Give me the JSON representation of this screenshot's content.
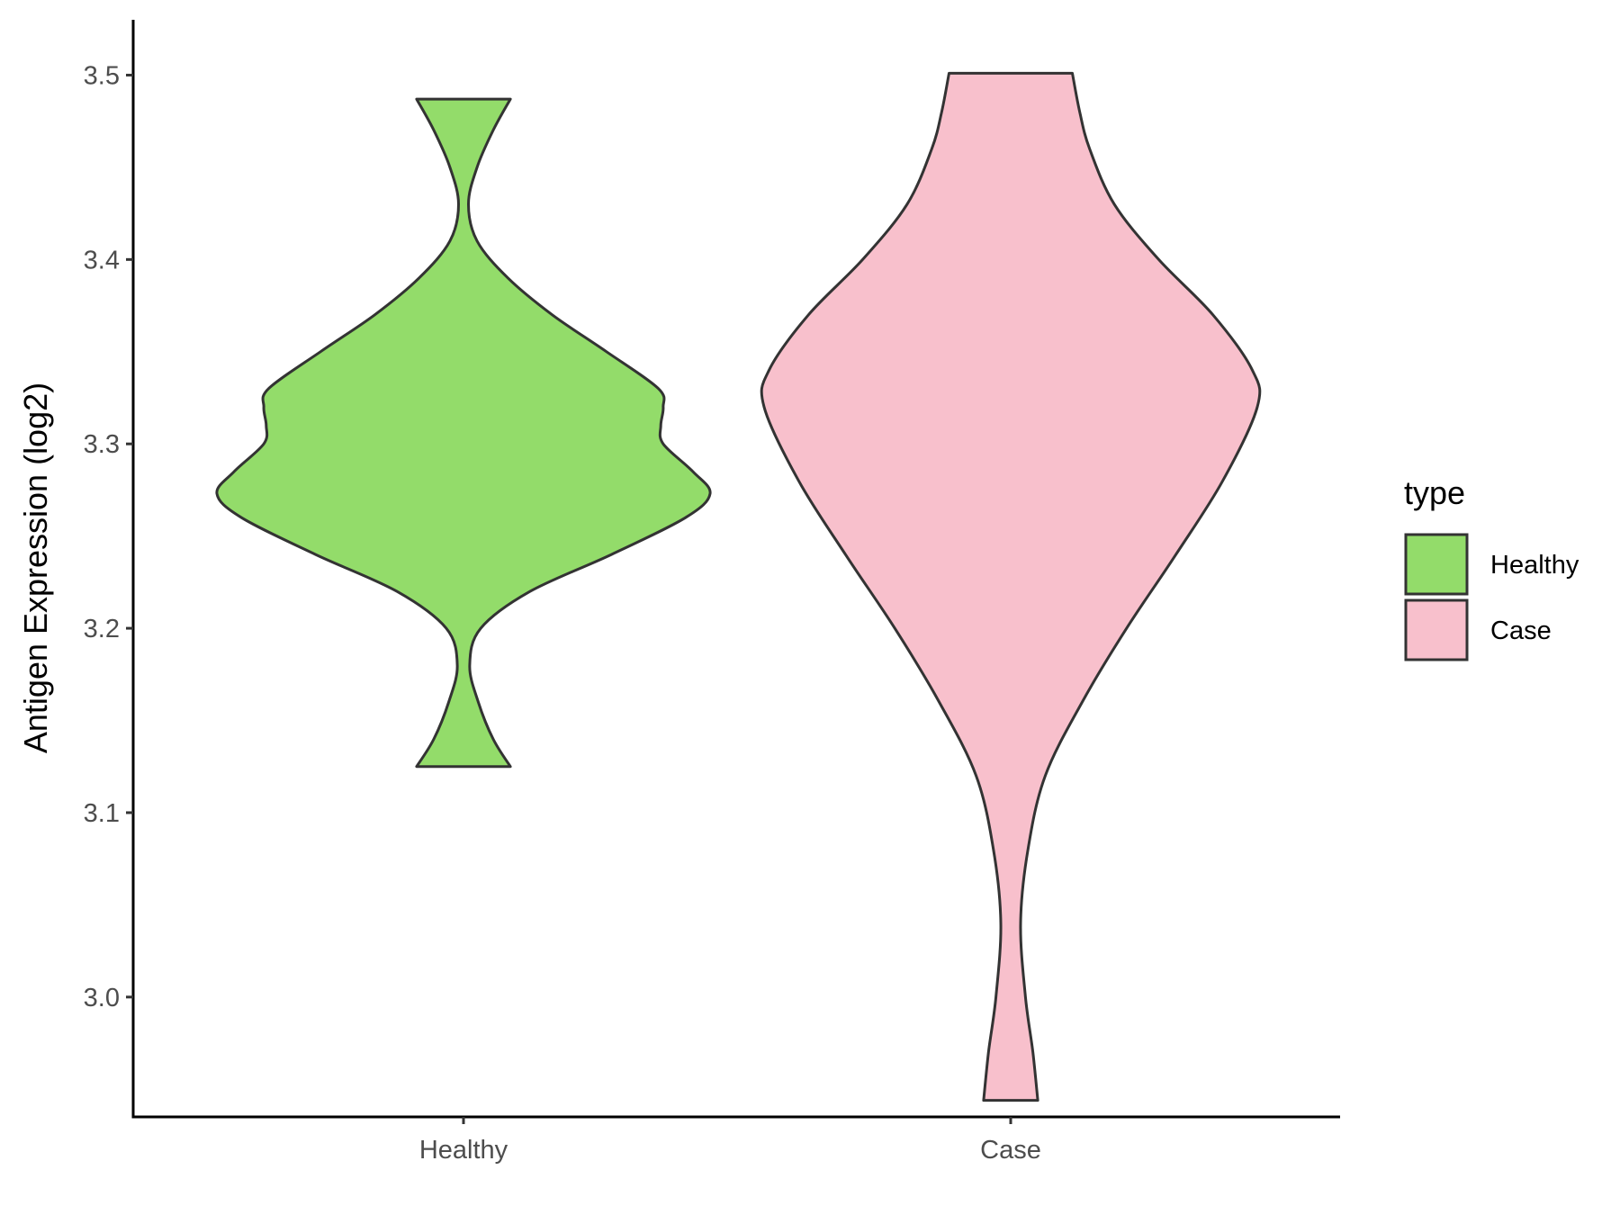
{
  "chart_data": {
    "type": "violin",
    "ylabel": "Antigen Expression (log2)",
    "xlabel": "",
    "categories": [
      "Healthy",
      "Case"
    ],
    "ylim": [
      2.935,
      3.53
    ],
    "yticks": [
      3.0,
      3.1,
      3.2,
      3.3,
      3.4,
      3.5
    ],
    "ytick_labels": [
      "3.0",
      "3.1",
      "3.2",
      "3.3",
      "3.4",
      "3.5"
    ],
    "grid": false,
    "legend": {
      "title": "type",
      "position": "right",
      "entries": [
        {
          "label": "Healthy",
          "color": "#93DC6A"
        },
        {
          "label": "Case",
          "color": "#F8C0CC"
        }
      ]
    },
    "series": [
      {
        "category": "Healthy",
        "color": "#93DC6A",
        "range": [
          3.125,
          3.487
        ],
        "density_relative_halfwidth": [
          [
            3.125,
            0.19
          ],
          [
            3.14,
            0.12
          ],
          [
            3.16,
            0.06
          ],
          [
            3.18,
            0.025
          ],
          [
            3.2,
            0.07
          ],
          [
            3.22,
            0.27
          ],
          [
            3.24,
            0.6
          ],
          [
            3.26,
            0.9
          ],
          [
            3.273,
            1.0
          ],
          [
            3.285,
            0.93
          ],
          [
            3.3,
            0.81
          ],
          [
            3.31,
            0.8
          ],
          [
            3.32,
            0.81
          ],
          [
            3.33,
            0.79
          ],
          [
            3.35,
            0.58
          ],
          [
            3.37,
            0.36
          ],
          [
            3.39,
            0.18
          ],
          [
            3.41,
            0.055
          ],
          [
            3.43,
            0.02
          ],
          [
            3.45,
            0.055
          ],
          [
            3.47,
            0.12
          ],
          [
            3.487,
            0.19
          ]
        ]
      },
      {
        "category": "Case",
        "color": "#F8C0CC",
        "range": [
          2.944,
          3.501
        ],
        "density_relative_halfwidth": [
          [
            2.944,
            0.11
          ],
          [
            2.97,
            0.09
          ],
          [
            3.0,
            0.06
          ],
          [
            3.04,
            0.04
          ],
          [
            3.08,
            0.07
          ],
          [
            3.12,
            0.14
          ],
          [
            3.16,
            0.29
          ],
          [
            3.2,
            0.47
          ],
          [
            3.24,
            0.67
          ],
          [
            3.28,
            0.86
          ],
          [
            3.32,
            1.0
          ],
          [
            3.34,
            0.98
          ],
          [
            3.37,
            0.82
          ],
          [
            3.4,
            0.6
          ],
          [
            3.43,
            0.42
          ],
          [
            3.46,
            0.32
          ],
          [
            3.48,
            0.28
          ],
          [
            3.501,
            0.25
          ]
        ]
      }
    ]
  }
}
